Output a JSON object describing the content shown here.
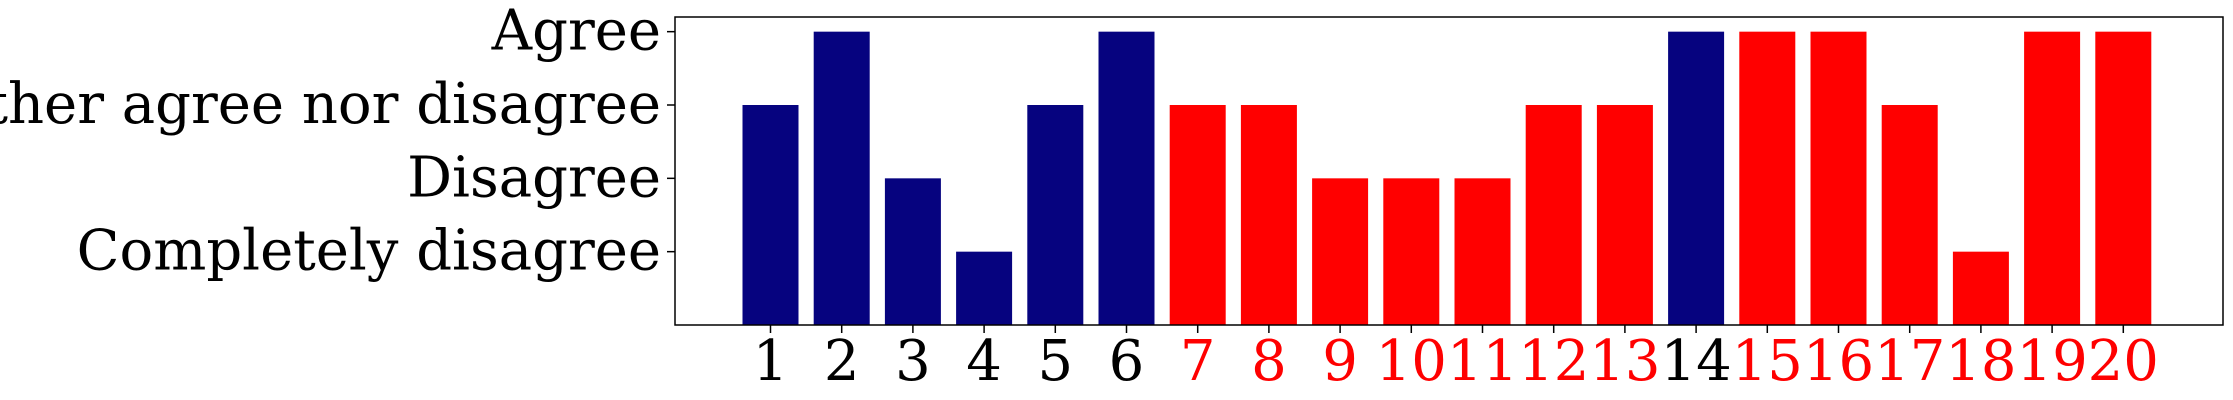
{
  "chart_data": {
    "type": "bar",
    "categories": [
      "1",
      "2",
      "3",
      "4",
      "5",
      "6",
      "7",
      "8",
      "9",
      "10",
      "11",
      "12",
      "13",
      "14",
      "15",
      "16",
      "17",
      "18",
      "19",
      "20"
    ],
    "values": [
      3,
      4,
      2,
      1,
      3,
      4,
      3,
      3,
      2,
      2,
      2,
      3,
      3,
      4,
      4,
      4,
      3,
      1,
      4,
      4
    ],
    "bar_groups": [
      "blue",
      "blue",
      "blue",
      "blue",
      "blue",
      "blue",
      "red",
      "red",
      "red",
      "red",
      "red",
      "red",
      "red",
      "blue",
      "red",
      "red",
      "red",
      "red",
      "red",
      "red"
    ],
    "y_ticks": [
      {
        "value": 1,
        "label": "Completely disagree"
      },
      {
        "value": 2,
        "label": "Disagree"
      },
      {
        "value": 3,
        "label": "Neither agree nor disagree"
      },
      {
        "value": 4,
        "label": "Agree"
      }
    ],
    "ylim": [
      0,
      4.2
    ],
    "title": "",
    "xlabel": "",
    "ylabel": "",
    "grid": false,
    "colors": {
      "blue": "#06037f",
      "red": "#ff0000",
      "blue_tick": "#000000",
      "red_tick": "#ff0000"
    }
  }
}
